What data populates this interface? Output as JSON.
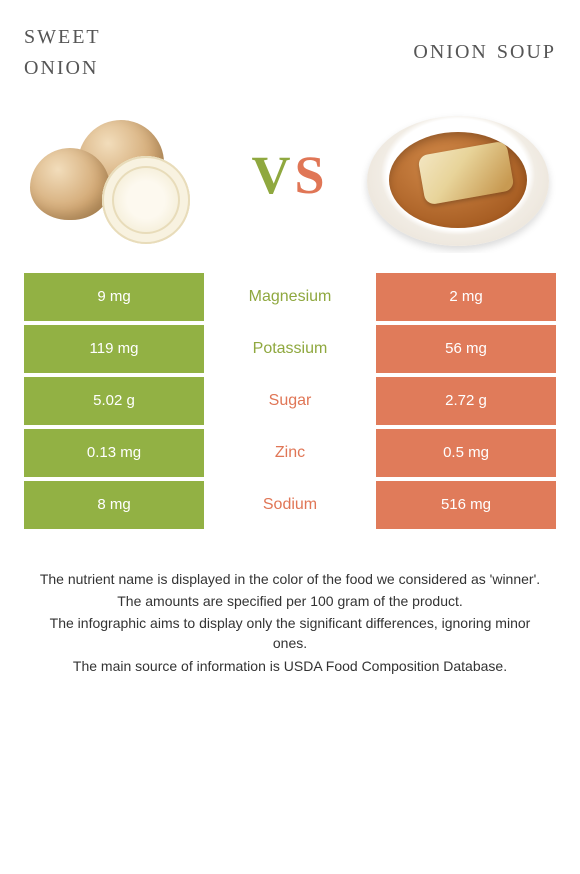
{
  "titles": {
    "left_line1": "Sweet",
    "left_line2": "onion",
    "right": "Onion soup"
  },
  "vs": {
    "v": "V",
    "s": "S"
  },
  "colors": {
    "left": "#92b144",
    "right": "#e07b5a",
    "left_accent": "#8fa83f",
    "right_accent": "#e07656"
  },
  "rows": [
    {
      "name": "Magnesium",
      "left": "9 mg",
      "right": "2 mg",
      "winner": "left"
    },
    {
      "name": "Potassium",
      "left": "119 mg",
      "right": "56 mg",
      "winner": "left"
    },
    {
      "name": "Sugar",
      "left": "5.02 g",
      "right": "2.72 g",
      "winner": "right"
    },
    {
      "name": "Zinc",
      "left": "0.13 mg",
      "right": "0.5 mg",
      "winner": "right"
    },
    {
      "name": "Sodium",
      "left": "8 mg",
      "right": "516 mg",
      "winner": "right"
    }
  ],
  "footer": [
    "The nutrient name is displayed in the color of the food we considered as 'winner'.",
    "The amounts are specified per 100 gram of the product.",
    "The infographic aims to display only the significant differences, ignoring minor ones.",
    "The main source of information is USDA Food Composition Database."
  ]
}
